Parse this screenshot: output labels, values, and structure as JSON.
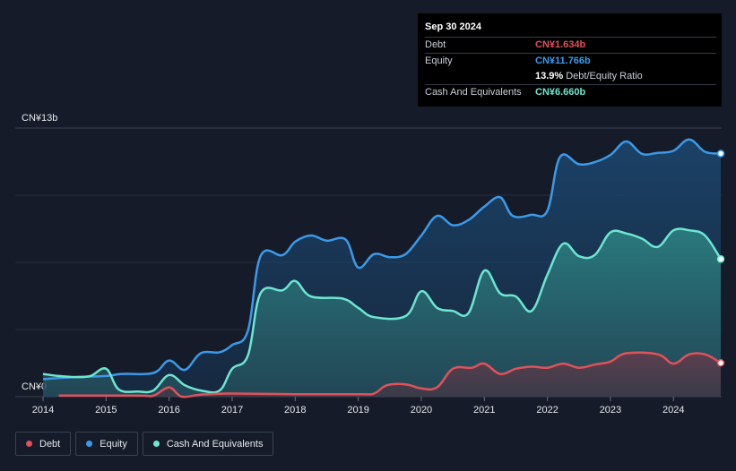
{
  "tooltip": {
    "date": "Sep 30 2024",
    "rows": [
      {
        "label": "Debt",
        "value": "CN¥1.634b"
      },
      {
        "label": "Equity",
        "value": "CN¥11.766b"
      },
      {
        "label": "",
        "value": "13.9%",
        "sub": "Debt/Equity Ratio"
      },
      {
        "label": "Cash And Equivalents",
        "value": "CN¥6.660b"
      }
    ]
  },
  "legend": [
    {
      "label": "Debt",
      "color": "#e0525a"
    },
    {
      "label": "Equity",
      "color": "#3b9ae8"
    },
    {
      "label": "Cash And Equivalents",
      "color": "#6de6d0"
    }
  ],
  "chart_data": {
    "type": "area",
    "y_top_label": "CN¥13b",
    "y_bottom_label": "CN¥0",
    "ylim": [
      0,
      13
    ],
    "xlim": [
      2014.0,
      2024.75
    ],
    "x_ticks": [
      "2014",
      "2015",
      "2016",
      "2017",
      "2018",
      "2019",
      "2020",
      "2021",
      "2022",
      "2023",
      "2024"
    ],
    "grid": true,
    "series": [
      {
        "name": "Equity",
        "color": "#3b9ae8",
        "points": [
          [
            2014.0,
            0.85
          ],
          [
            2014.5,
            0.95
          ],
          [
            2015.0,
            1.0
          ],
          [
            2015.25,
            1.1
          ],
          [
            2015.75,
            1.15
          ],
          [
            2016.0,
            1.75
          ],
          [
            2016.25,
            1.3
          ],
          [
            2016.5,
            2.1
          ],
          [
            2016.8,
            2.15
          ],
          [
            2017.0,
            2.5
          ],
          [
            2017.25,
            3.2
          ],
          [
            2017.45,
            6.8
          ],
          [
            2017.8,
            6.85
          ],
          [
            2018.0,
            7.5
          ],
          [
            2018.25,
            7.8
          ],
          [
            2018.5,
            7.55
          ],
          [
            2018.8,
            7.6
          ],
          [
            2019.0,
            6.25
          ],
          [
            2019.25,
            6.9
          ],
          [
            2019.5,
            6.75
          ],
          [
            2019.75,
            6.9
          ],
          [
            2020.0,
            7.8
          ],
          [
            2020.25,
            8.75
          ],
          [
            2020.5,
            8.3
          ],
          [
            2020.75,
            8.55
          ],
          [
            2021.0,
            9.2
          ],
          [
            2021.25,
            9.65
          ],
          [
            2021.45,
            8.75
          ],
          [
            2021.75,
            8.8
          ],
          [
            2022.0,
            9.0
          ],
          [
            2022.2,
            11.6
          ],
          [
            2022.5,
            11.25
          ],
          [
            2022.75,
            11.35
          ],
          [
            2023.0,
            11.7
          ],
          [
            2023.25,
            12.35
          ],
          [
            2023.5,
            11.75
          ],
          [
            2023.75,
            11.8
          ],
          [
            2024.0,
            11.9
          ],
          [
            2024.25,
            12.45
          ],
          [
            2024.5,
            11.85
          ],
          [
            2024.75,
            11.766
          ]
        ]
      },
      {
        "name": "Cash And Equivalents",
        "color": "#6de6d0",
        "points": [
          [
            2014.0,
            1.1
          ],
          [
            2014.25,
            1.0
          ],
          [
            2014.5,
            0.95
          ],
          [
            2014.75,
            1.0
          ],
          [
            2015.0,
            1.35
          ],
          [
            2015.2,
            0.35
          ],
          [
            2015.5,
            0.25
          ],
          [
            2015.75,
            0.3
          ],
          [
            2016.0,
            1.05
          ],
          [
            2016.25,
            0.55
          ],
          [
            2016.5,
            0.3
          ],
          [
            2016.8,
            0.3
          ],
          [
            2017.0,
            1.35
          ],
          [
            2017.25,
            2.0
          ],
          [
            2017.45,
            5.0
          ],
          [
            2017.8,
            5.15
          ],
          [
            2018.0,
            5.6
          ],
          [
            2018.25,
            4.85
          ],
          [
            2018.75,
            4.75
          ],
          [
            2019.0,
            4.3
          ],
          [
            2019.25,
            3.85
          ],
          [
            2019.75,
            3.9
          ],
          [
            2020.0,
            5.1
          ],
          [
            2020.25,
            4.3
          ],
          [
            2020.5,
            4.15
          ],
          [
            2020.75,
            4.05
          ],
          [
            2021.0,
            6.1
          ],
          [
            2021.25,
            5.0
          ],
          [
            2021.5,
            4.85
          ],
          [
            2021.75,
            4.15
          ],
          [
            2022.0,
            5.9
          ],
          [
            2022.25,
            7.4
          ],
          [
            2022.5,
            6.8
          ],
          [
            2022.75,
            6.85
          ],
          [
            2023.0,
            7.95
          ],
          [
            2023.25,
            7.9
          ],
          [
            2023.5,
            7.65
          ],
          [
            2023.75,
            7.25
          ],
          [
            2024.0,
            8.05
          ],
          [
            2024.25,
            8.05
          ],
          [
            2024.5,
            7.8
          ],
          [
            2024.75,
            6.66
          ]
        ]
      },
      {
        "name": "Debt",
        "color": "#e0525a",
        "points": [
          [
            2014.25,
            0.05
          ],
          [
            2015.5,
            0.05
          ],
          [
            2015.75,
            0.05
          ],
          [
            2016.0,
            0.45
          ],
          [
            2016.2,
            0.0
          ],
          [
            2016.5,
            0.1
          ],
          [
            2017.0,
            0.15
          ],
          [
            2018.0,
            0.12
          ],
          [
            2019.0,
            0.12
          ],
          [
            2019.25,
            0.15
          ],
          [
            2019.45,
            0.55
          ],
          [
            2019.75,
            0.6
          ],
          [
            2020.0,
            0.4
          ],
          [
            2020.25,
            0.45
          ],
          [
            2020.5,
            1.35
          ],
          [
            2020.8,
            1.4
          ],
          [
            2021.0,
            1.6
          ],
          [
            2021.25,
            1.1
          ],
          [
            2021.5,
            1.35
          ],
          [
            2021.75,
            1.45
          ],
          [
            2022.0,
            1.4
          ],
          [
            2022.25,
            1.6
          ],
          [
            2022.5,
            1.4
          ],
          [
            2022.75,
            1.55
          ],
          [
            2023.0,
            1.7
          ],
          [
            2023.25,
            2.1
          ],
          [
            2023.75,
            2.05
          ],
          [
            2024.0,
            1.6
          ],
          [
            2024.25,
            2.05
          ],
          [
            2024.5,
            2.05
          ],
          [
            2024.75,
            1.634
          ]
        ]
      }
    ]
  }
}
